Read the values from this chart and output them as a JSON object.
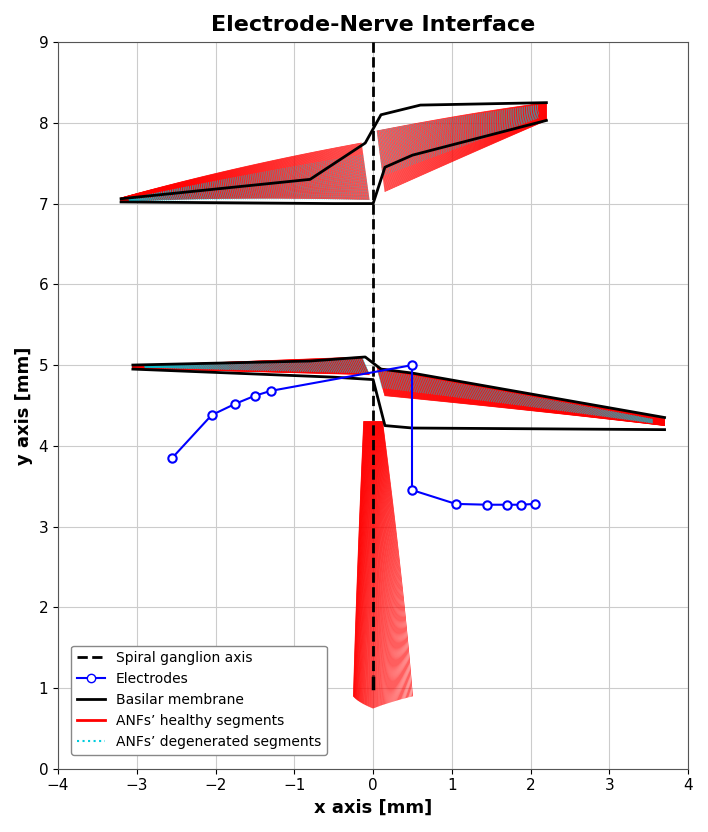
{
  "title": "Electrode-Nerve Interface",
  "xlabel": "x axis [mm]",
  "ylabel": "y axis [mm]",
  "xlim": [
    -4,
    4
  ],
  "ylim": [
    0,
    9
  ],
  "xticks": [
    -4,
    -3,
    -2,
    -1,
    0,
    1,
    2,
    3,
    4
  ],
  "yticks": [
    0,
    1,
    2,
    3,
    4,
    5,
    6,
    7,
    8,
    9
  ],
  "anf_color": "#ff0000",
  "degenerated_color": "#00ccdd",
  "background_color": "#ffffff",
  "grid_color": "#cccccc",
  "electrodes_group1_x": [
    -2.55,
    -2.05,
    -1.75,
    -1.5,
    -1.3,
    0.5
  ],
  "electrodes_group1_y": [
    3.85,
    4.38,
    4.52,
    4.62,
    4.68,
    5.0
  ],
  "electrodes_group2_x": [
    0.5,
    1.05,
    1.45,
    1.7,
    1.88,
    2.05
  ],
  "electrodes_group2_y": [
    3.45,
    3.28,
    3.27,
    3.27,
    3.27,
    3.28
  ]
}
